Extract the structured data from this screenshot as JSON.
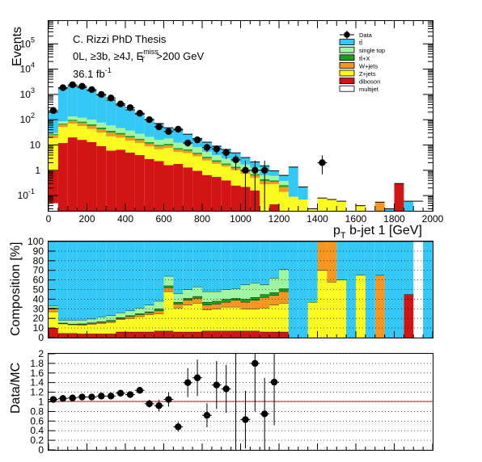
{
  "chart_data": [
    {
      "type": "histogram",
      "panel": "top",
      "title": "",
      "annotations": [
        "C. Rizzi PhD Thesis",
        "0L, ≥3b, ≥4J, E",
        "miss",
        "T",
        ">200 GeV",
        "36.1 fb",
        "-1"
      ],
      "ylabel": "Events",
      "xlabel_parts": [
        "p",
        "T",
        " b-jet 1 [GeV]"
      ],
      "yscale": "log",
      "ylim": [
        0.025,
        800000
      ],
      "xlim": [
        0,
        2000
      ],
      "bin_edges": [
        0,
        50,
        100,
        150,
        200,
        250,
        300,
        350,
        400,
        450,
        500,
        550,
        600,
        650,
        700,
        750,
        800,
        850,
        900,
        950,
        1000,
        1050,
        1100,
        1150,
        1200,
        1250,
        1300,
        1350,
        1400,
        1450,
        1500,
        1550,
        1600,
        1650,
        1700,
        1750,
        1800,
        1850,
        1900,
        1950,
        2000
      ],
      "x_ticks": [
        0,
        200,
        400,
        600,
        800,
        1000,
        1200,
        1400,
        1600,
        1800,
        2000
      ],
      "y_ticks": [
        {
          "v": 0.1,
          "base": "10",
          "exp": "-1"
        },
        {
          "v": 1,
          "base": "1",
          "exp": ""
        },
        {
          "v": 10,
          "base": "10",
          "exp": ""
        },
        {
          "v": 100,
          "base": "10",
          "exp": "2"
        },
        {
          "v": 1000,
          "base": "10",
          "exp": "3"
        },
        {
          "v": 10000,
          "base": "10",
          "exp": "4"
        },
        {
          "v": 100000,
          "base": "10",
          "exp": "5"
        }
      ],
      "legend_position": "top-right",
      "legend": [
        {
          "label": "Data",
          "kind": "marker"
        },
        {
          "label": "tt̄",
          "color": "#33c8f5"
        },
        {
          "label": "single top",
          "color": "#a0f5a0"
        },
        {
          "label": "tt̄+X",
          "color": "#1d9e1d"
        },
        {
          "label": "W+jets",
          "color": "#f5961e"
        },
        {
          "label": "Z+jets",
          "color": "#fafa1e"
        },
        {
          "label": "diboson",
          "color": "#d21414"
        },
        {
          "label": "multijet",
          "color": "#ffffff"
        }
      ],
      "stack_order_bottom_to_top": [
        "multijet",
        "diboson",
        "Z+jets",
        "W+jets",
        "tt̄+X",
        "single top",
        "tt̄"
      ],
      "series": [
        {
          "name": "multijet",
          "values": [
            0.05,
            0,
            0,
            0,
            0,
            0,
            0,
            0,
            0,
            0,
            0,
            0,
            0,
            0,
            0,
            0,
            0,
            0,
            0,
            0,
            0,
            0,
            0,
            0,
            0,
            0,
            0,
            0,
            0,
            0,
            0,
            0,
            0,
            0,
            0,
            0,
            0,
            0,
            0.06,
            0
          ]
        },
        {
          "name": "diboson",
          "values": [
            0.9,
            12,
            20,
            16,
            13,
            9,
            6,
            6.5,
            5,
            4,
            2.8,
            2.3,
            1.6,
            1.8,
            1.3,
            0.95,
            0.65,
            0.55,
            0.4,
            0.25,
            0.22,
            0.16,
            0,
            0.045,
            0,
            0,
            0,
            0,
            0,
            0,
            0,
            0,
            0,
            0,
            0,
            0,
            0.3,
            0,
            0,
            0
          ]
        },
        {
          "name": "Z+jets",
          "values": [
            18,
            40,
            50,
            40,
            30,
            22,
            16,
            13,
            10,
            8,
            6,
            4.5,
            6,
            3.5,
            3.5,
            2.6,
            1.8,
            1.25,
            1,
            0.75,
            0.5,
            0.34,
            0.28,
            0.24,
            0.14,
            0.09,
            0.07,
            0.03,
            0.08,
            0.07,
            0.06,
            0,
            0.04,
            0,
            0,
            0,
            0,
            0,
            0,
            0
          ]
        },
        {
          "name": "W+jets",
          "values": [
            6,
            12,
            20,
            18,
            14,
            11,
            9,
            6.5,
            5,
            3.5,
            2.5,
            2,
            2,
            1.3,
            1.15,
            0.85,
            0.55,
            0.37,
            0.26,
            0.2,
            0.15,
            0.12,
            0.1,
            0.065,
            0.08,
            0,
            0,
            0,
            0,
            0,
            0,
            0,
            0,
            0,
            0.055,
            0,
            0,
            0,
            0,
            0
          ]
        },
        {
          "name": "tt̄+X",
          "values": [
            2,
            6,
            10,
            10,
            9,
            7,
            5.5,
            4,
            3,
            2.2,
            1.7,
            1.3,
            1.5,
            0.9,
            0.75,
            0.55,
            0.42,
            0.32,
            0.2,
            0.18,
            0.12,
            0.1,
            0.06,
            0.05,
            0.04,
            0,
            0,
            0,
            0,
            0,
            0,
            0,
            0,
            0,
            0,
            0,
            0,
            0,
            0,
            0
          ]
        },
        {
          "name": "single top",
          "values": [
            3,
            16,
            34,
            36,
            35,
            28,
            23,
            17,
            14,
            10,
            8,
            6,
            7,
            5,
            4,
            3.2,
            2,
            1.5,
            1.1,
            0.8,
            0.7,
            0.55,
            0.2,
            0.2,
            0.12,
            0,
            0,
            0,
            0,
            0,
            0,
            0,
            0,
            0,
            0,
            0,
            0,
            0,
            0,
            0
          ]
        },
        {
          "name": "tt̄",
          "values": [
            170,
            1600,
            2000,
            1750,
            1300,
            870,
            540,
            330,
            210,
            140,
            82,
            55,
            30,
            27,
            16,
            10,
            7.5,
            5,
            3.7,
            2.7,
            1.5,
            0.88,
            0.86,
            0.35,
            0.25,
            1.25,
            0.15,
            0,
            0,
            0,
            0,
            0,
            0,
            0,
            0,
            0.03,
            0,
            0.06,
            0,
            0
          ]
        }
      ],
      "data": {
        "name": "Data",
        "x": [
          25,
          75,
          125,
          175,
          225,
          275,
          325,
          375,
          425,
          475,
          525,
          575,
          625,
          675,
          725,
          775,
          825,
          875,
          925,
          975,
          1025,
          1075,
          1125,
          1425
        ],
        "y": [
          230,
          1850,
          2400,
          2100,
          1550,
          1000,
          720,
          420,
          300,
          180,
          100,
          52,
          34,
          42,
          12,
          16,
          8,
          7,
          5,
          2.6,
          1,
          1,
          1,
          2
        ],
        "err_low": [
          15,
          43,
          49,
          46,
          39,
          32,
          27,
          20,
          17,
          13,
          10,
          7,
          6,
          6.5,
          3.5,
          4,
          2.8,
          2.6,
          2.2,
          1.6,
          0.99,
          0.99,
          0.99,
          1.3
        ],
        "err_high": [
          15,
          43,
          49,
          46,
          39,
          32,
          27,
          20,
          17,
          13,
          10,
          7,
          6,
          6.5,
          3.5,
          4,
          2.8,
          2.6,
          2.2,
          1.6,
          1.4,
          1.4,
          1.4,
          1.9
        ]
      }
    },
    {
      "type": "histogram",
      "panel": "middle",
      "ylabel": "Composition [%]",
      "ylim": [
        0,
        100
      ],
      "y_ticks": [
        0,
        10,
        20,
        30,
        40,
        50,
        60,
        70,
        80,
        90,
        100
      ],
      "bin_edges": [
        0,
        50,
        100,
        150,
        200,
        250,
        300,
        350,
        400,
        450,
        500,
        550,
        600,
        650,
        700,
        750,
        800,
        850,
        900,
        950,
        1000,
        1050,
        1100,
        1150,
        1200,
        1250,
        1300,
        1350,
        1400,
        1450,
        1500,
        1550,
        1600,
        1650,
        1700,
        1750,
        1800,
        1850,
        1900,
        1950,
        2000
      ],
      "series": [
        {
          "name": "multijet",
          "values": [
            0,
            0,
            0,
            0,
            0,
            0,
            0,
            0,
            0,
            0,
            0,
            0,
            0,
            0,
            0,
            0,
            0,
            0,
            0,
            0,
            0,
            0,
            0,
            0,
            0,
            0,
            0,
            0,
            0,
            0,
            0,
            0,
            0,
            0,
            0,
            0,
            0,
            0,
            100,
            0
          ]
        },
        {
          "name": "diboson",
          "values": [
            10,
            4.5,
            4.5,
            4,
            4,
            4,
            4,
            6,
            6,
            6,
            6,
            7,
            7,
            6,
            6,
            6,
            7,
            7,
            7,
            7,
            7,
            7,
            6,
            6,
            6,
            0,
            0,
            0,
            0,
            0,
            0,
            0,
            0,
            0,
            0,
            0,
            0,
            45,
            0,
            0
          ]
        },
        {
          "name": "Z+jets",
          "values": [
            17,
            10,
            9,
            9,
            10,
            11,
            12,
            13,
            14,
            16,
            18,
            18,
            41,
            25,
            28,
            30,
            22,
            23,
            25,
            25,
            23,
            23,
            25,
            28,
            30,
            0,
            0,
            37,
            70,
            58,
            60,
            0,
            65,
            0,
            0,
            0,
            0,
            0,
            0,
            0
          ]
        },
        {
          "name": "W+jets",
          "values": [
            3,
            0.5,
            0.5,
            1,
            1,
            1,
            1,
            1,
            2,
            2,
            2,
            3,
            4,
            4,
            5,
            5,
            5,
            5,
            5,
            7,
            7,
            9,
            11,
            10,
            12,
            0,
            0,
            0,
            30,
            42,
            0,
            0,
            0,
            0,
            65,
            0,
            0,
            0,
            0,
            0
          ]
        },
        {
          "name": "tt̄+X",
          "values": [
            1,
            0.3,
            0.3,
            0.5,
            0.5,
            0.7,
            1,
            1,
            1,
            1,
            1,
            2,
            2,
            2,
            2,
            2,
            3,
            3,
            3,
            2,
            3,
            3,
            3,
            3,
            3,
            0,
            0,
            0,
            0,
            0,
            0,
            0,
            0,
            0,
            0,
            0,
            0,
            0,
            0,
            0
          ]
        },
        {
          "name": "single top",
          "values": [
            2,
            3,
            4,
            4,
            4,
            5,
            5,
            5,
            5,
            6,
            7,
            8,
            10,
            9,
            9,
            10,
            11,
            10,
            10,
            10,
            15,
            15,
            10,
            15,
            20,
            0,
            0,
            0,
            0,
            0,
            0,
            0,
            0,
            0,
            0,
            0,
            0,
            0,
            0,
            0
          ]
        },
        {
          "name": "tt̄",
          "values": [
            67,
            81.7,
            81.7,
            81.5,
            80.5,
            78.3,
            77,
            74,
            72,
            69,
            66,
            62,
            36,
            54,
            50,
            47,
            52,
            52,
            50,
            49,
            45,
            43,
            45,
            38,
            29,
            100,
            100,
            63,
            0,
            0,
            40,
            100,
            35,
            100,
            35,
            100,
            100,
            55,
            0,
            100
          ]
        }
      ]
    },
    {
      "type": "scatter",
      "panel": "bottom",
      "ylabel": "Data/MC",
      "ylim": [
        0,
        2
      ],
      "y_ticks": [
        0,
        0.2,
        0.4,
        0.6,
        0.8,
        1,
        1.2,
        1.4,
        1.6,
        1.8,
        2
      ],
      "reference_line": 1,
      "x": [
        25,
        75,
        125,
        175,
        225,
        275,
        325,
        375,
        425,
        475,
        525,
        575,
        625,
        675,
        725,
        775,
        825,
        875,
        925,
        975,
        1025,
        1075,
        1125,
        1175
      ],
      "y": [
        1.05,
        1.07,
        1.08,
        1.1,
        1.1,
        1.12,
        1.12,
        1.18,
        1.15,
        1.24,
        0.96,
        0.92,
        1.05,
        0.48,
        1.4,
        1.5,
        0.72,
        1.35,
        1.27,
        0,
        0.63,
        1.8,
        0.75,
        1.41
      ],
      "err": [
        0.04,
        0.03,
        0.03,
        0.03,
        0.03,
        0.04,
        0.04,
        0.05,
        0.06,
        0.07,
        0.08,
        0.12,
        0.15,
        0.1,
        0.3,
        0.38,
        0.25,
        0.5,
        0.5,
        0,
        0.6,
        1.0,
        0.75,
        0.9
      ]
    }
  ]
}
